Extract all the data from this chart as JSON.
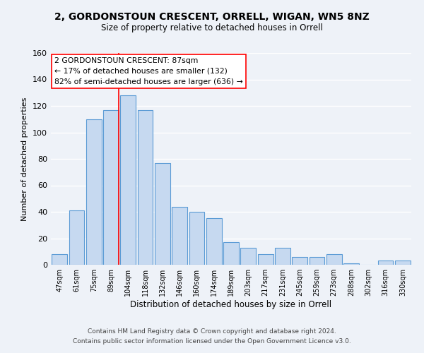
{
  "title": "2, GORDONSTOUN CRESCENT, ORRELL, WIGAN, WN5 8NZ",
  "subtitle": "Size of property relative to detached houses in Orrell",
  "xlabel": "Distribution of detached houses by size in Orrell",
  "ylabel": "Number of detached properties",
  "bar_labels": [
    "47sqm",
    "61sqm",
    "75sqm",
    "89sqm",
    "104sqm",
    "118sqm",
    "132sqm",
    "146sqm",
    "160sqm",
    "174sqm",
    "189sqm",
    "203sqm",
    "217sqm",
    "231sqm",
    "245sqm",
    "259sqm",
    "273sqm",
    "288sqm",
    "302sqm",
    "316sqm",
    "330sqm"
  ],
  "bar_heights": [
    8,
    41,
    110,
    117,
    128,
    117,
    77,
    44,
    40,
    35,
    17,
    13,
    8,
    13,
    6,
    6,
    8,
    1,
    0,
    3,
    3
  ],
  "bar_color": "#c6d9f0",
  "bar_edge_color": "#5b9bd5",
  "ylim": [
    0,
    160
  ],
  "yticks": [
    0,
    20,
    40,
    60,
    80,
    100,
    120,
    140,
    160
  ],
  "annotation_box_text": "2 GORDONSTOUN CRESCENT: 87sqm\n← 17% of detached houses are smaller (132)\n82% of semi-detached houses are larger (636) →",
  "redline_bar_index": 3,
  "footer_line1": "Contains HM Land Registry data © Crown copyright and database right 2024.",
  "footer_line2": "Contains public sector information licensed under the Open Government Licence v3.0.",
  "background_color": "#eef2f8",
  "plot_background": "#eef2f8",
  "grid_color": "white"
}
